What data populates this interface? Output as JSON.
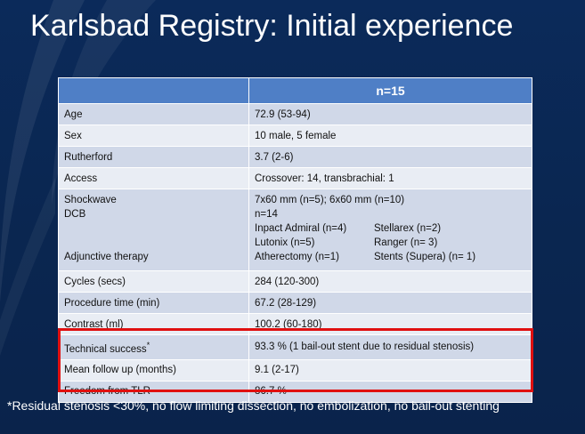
{
  "slide": {
    "title": "Karlsbad Registry: Initial experience"
  },
  "table": {
    "header": [
      "",
      "n=15"
    ],
    "rows": [
      {
        "label": "Age",
        "value": "72.9 (53-94)"
      },
      {
        "label": "Sex",
        "value": "10 male, 5 female"
      },
      {
        "label": "Rutherford",
        "value": "3.7 (2-6)"
      },
      {
        "label": "Access",
        "value": "Crossover: 14, transbrachial: 1"
      },
      {
        "labels": [
          "Shockwave",
          "DCB",
          "Adjunctive therapy"
        ],
        "shockwave": "7x60 mm (n=5); 6x60 mm (n=10)",
        "dcb": "n=14",
        "devices": [
          {
            "left": "Inpact Admiral (n=4)",
            "right": "Stellarex (n=2)"
          },
          {
            "left": "Lutonix (n=5)",
            "right": "Ranger (n= 3)"
          },
          {
            "left": "Atherectomy (n=1)",
            "right": "Stents (Supera) (n= 1)"
          }
        ]
      },
      {
        "label": "Cycles (secs)",
        "value": "284 (120-300)"
      },
      {
        "label": "Procedure time (min)",
        "value": "67.2 (28-129)"
      },
      {
        "label": "Contrast (ml)",
        "value": "100.2 (60-180)"
      },
      {
        "label": "Technical success",
        "label_mark": "*",
        "value": "93.3 % (1 bail-out stent due to residual stenosis)"
      },
      {
        "label": "Mean follow up (months)",
        "value": "9.1 (2-17)"
      },
      {
        "label": "Freedom from TLR",
        "value": "86.7 %"
      }
    ]
  },
  "footnote": {
    "text": "*Residual stenosis <30%, no flow limiting dissection, no embolization, no bail-out stenting"
  },
  "colors": {
    "background": "#0b2a5a",
    "header": "#4f7fc6",
    "row_odd": "#d0d8e8",
    "row_even": "#e9edf4",
    "highlight": "#e01010"
  }
}
